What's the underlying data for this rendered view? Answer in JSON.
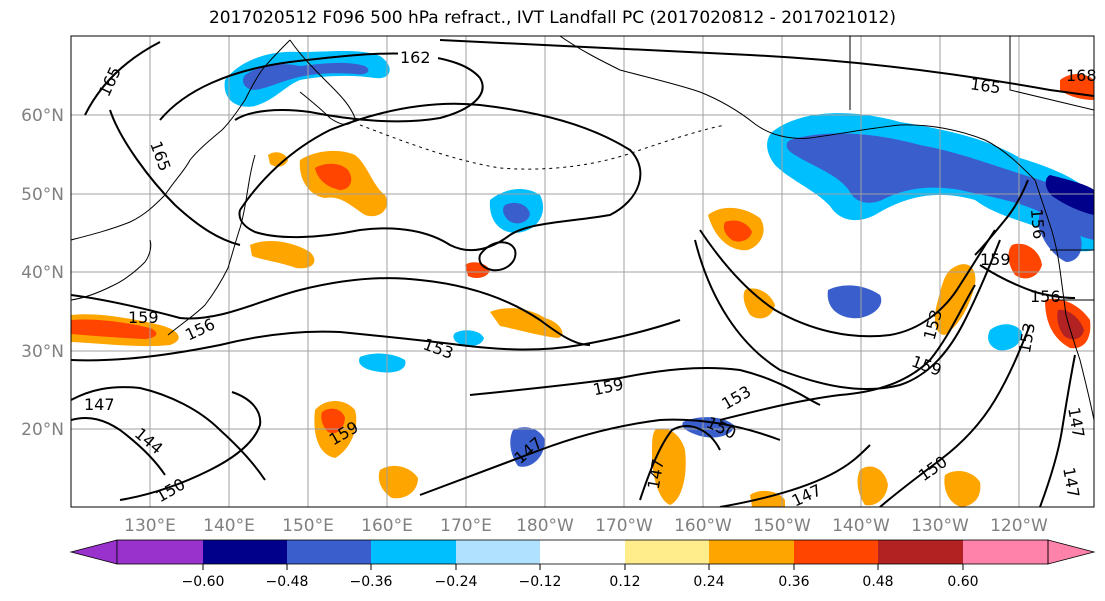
{
  "title": "2017020512 F096 500 hPa refract., IVT Landfall PC (2017020812 - 2017021012)",
  "latitude_labels": [
    "60°N",
    "50°N",
    "40°N",
    "30°N",
    "20°N"
  ],
  "longitude_labels": [
    "130°E",
    "140°E",
    "150°E",
    "160°E",
    "170°E",
    "180°W",
    "170°W",
    "160°W",
    "150°W",
    "140°W",
    "130°W",
    "120°W"
  ],
  "contour_labels": [
    "162",
    "165",
    "165",
    "165",
    "156",
    "159",
    "156",
    "153",
    "159",
    "153",
    "147",
    "144",
    "150",
    "159",
    "147",
    "150",
    "147",
    "147",
    "153",
    "159",
    "159",
    "156",
    "153",
    "150",
    "147",
    "147",
    "168"
  ],
  "colorbar": {
    "colors": [
      "#9932cc",
      "#00008b",
      "#3a5fcd",
      "#00bfff",
      "#b0e2ff",
      "#ffffff",
      "#ffec8b",
      "#ffa500",
      "#ff4500",
      "#b22222",
      "#ff82ab"
    ],
    "tick_labels": [
      "−0.60",
      "−0.48",
      "−0.36",
      "−0.24",
      "−0.12",
      "0.12",
      "0.24",
      "0.36",
      "0.48",
      "0.60"
    ]
  },
  "colors": {
    "grid": "#a0a0a0",
    "coast": "#000000",
    "contour": "#000000",
    "label_gray": "#808080"
  }
}
